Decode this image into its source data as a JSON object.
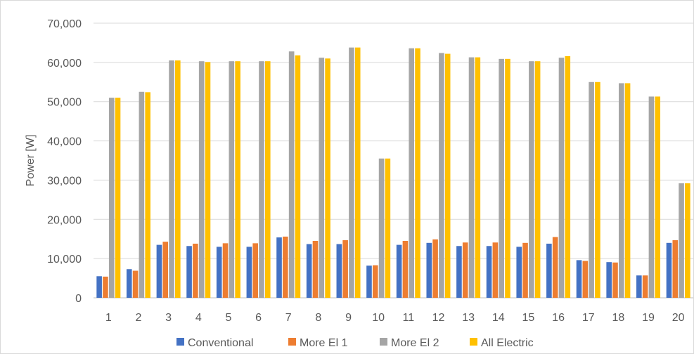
{
  "chart_data": {
    "type": "bar",
    "title": "",
    "xlabel": "",
    "ylabel": "Power [W]",
    "ylim": [
      0,
      70000
    ],
    "yticks": [
      0,
      10000,
      20000,
      30000,
      40000,
      50000,
      60000,
      70000
    ],
    "ytick_labels": [
      "0",
      "10,000",
      "20,000",
      "30,000",
      "40,000",
      "50,000",
      "60,000",
      "70,000"
    ],
    "grid": true,
    "legend_position": "bottom",
    "categories": [
      "1",
      "2",
      "3",
      "4",
      "5",
      "6",
      "7",
      "8",
      "9",
      "10",
      "11",
      "12",
      "13",
      "14",
      "15",
      "16",
      "17",
      "18",
      "19",
      "20"
    ],
    "series": [
      {
        "name": "Conventional",
        "color": "#4472c4",
        "values": [
          5500,
          7300,
          13500,
          13200,
          13000,
          13000,
          15400,
          13700,
          13700,
          8200,
          13500,
          14000,
          13200,
          13200,
          13000,
          13800,
          9600,
          9100,
          5700,
          14000
        ]
      },
      {
        "name": "More El 1",
        "color": "#ed7d31",
        "values": [
          5400,
          6900,
          14300,
          13800,
          13900,
          13900,
          15600,
          14500,
          14700,
          8300,
          14500,
          14900,
          14100,
          14100,
          14000,
          15500,
          9400,
          9000,
          5700,
          14700
        ]
      },
      {
        "name": "More El 2",
        "color": "#a5a5a5",
        "values": [
          51000,
          52500,
          60500,
          60300,
          60300,
          60300,
          62800,
          61200,
          63800,
          35500,
          63600,
          62400,
          61300,
          60900,
          60300,
          61200,
          55000,
          54700,
          51300,
          29200
        ]
      },
      {
        "name": "All Electric",
        "color": "#ffc000",
        "values": [
          51000,
          52400,
          60500,
          60100,
          60300,
          60300,
          61800,
          61000,
          63800,
          35500,
          63600,
          62200,
          61300,
          60900,
          60300,
          61600,
          55000,
          54700,
          51300,
          29200
        ]
      }
    ]
  }
}
